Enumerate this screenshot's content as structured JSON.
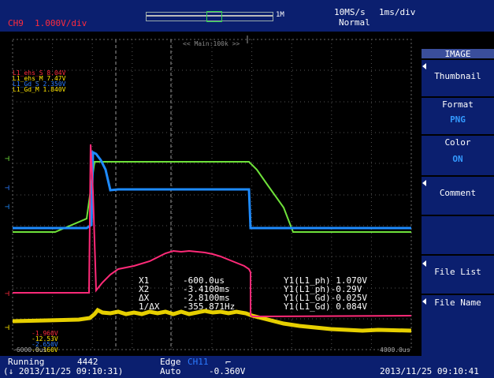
{
  "header": {
    "channel": "CH9",
    "vdiv": "1.000V/div",
    "window_label": "1M",
    "sample_rate": "10MS/s",
    "timebase": "1ms/div",
    "mode": "Normal"
  },
  "plot": {
    "main_label": "<< Main:100k >>",
    "legend_top": [
      {
        "name": "L1_ehs_S",
        "value": "8.04V",
        "color": "#ff2b3d"
      },
      {
        "name": "L1_ehs_M",
        "value": "7.47V",
        "color": "#ffe600"
      },
      {
        "name": "L1_Gd_S",
        "value": "2.350V",
        "color": "#2b7bff"
      },
      {
        "name": "L1_Gd_M",
        "value": "1.840V",
        "color": "#ffe600"
      }
    ],
    "legend_bottom": [
      {
        "value": "-1.960V",
        "color": "#ff2b3d"
      },
      {
        "value": "-12.53V",
        "color": "#ffe600"
      },
      {
        "value": "-2.650V",
        "color": "#2b7bff"
      },
      {
        "value": "-0.160V",
        "color": "#ffe600"
      }
    ],
    "time_left": "-6000.0us",
    "time_right": "4000.0us",
    "cursors": [
      {
        "label": "X1",
        "value": "-600.0us",
        "y": "Y1(L1_ph) 1.070V"
      },
      {
        "label": "X2",
        "value": "-3.4100ms",
        "y": "Y1(L1_ph)-0.29V"
      },
      {
        "label": "ΔX",
        "value": "-2.8100ms",
        "y": "Y1(L1_Gd)-0.025V"
      },
      {
        "label": "1/ΔX",
        "value": "-355.871Hz",
        "y": "Y1(L1_Gd) 0.084V"
      }
    ]
  },
  "menu": {
    "title": "IMAGE",
    "items": [
      {
        "label": "Thumbnail",
        "value": ""
      },
      {
        "label": "Format",
        "value": "PNG"
      },
      {
        "label": "Color",
        "value": "ON"
      },
      {
        "label": "Comment",
        "value": ""
      },
      {
        "label": "",
        "value": ""
      },
      {
        "label": "File List",
        "value": ""
      },
      {
        "label": "File Name",
        "value": ""
      }
    ]
  },
  "footer": {
    "status": "Running",
    "count": "4442",
    "last_time": "(↓ 2013/11/25 09:10:31)",
    "trigger_type": "Edge",
    "trigger_channel": "CH11",
    "trigger_mode": "Auto",
    "trigger_level": "-0.360V",
    "datetime": "2013/11/25 09:10:41"
  }
}
